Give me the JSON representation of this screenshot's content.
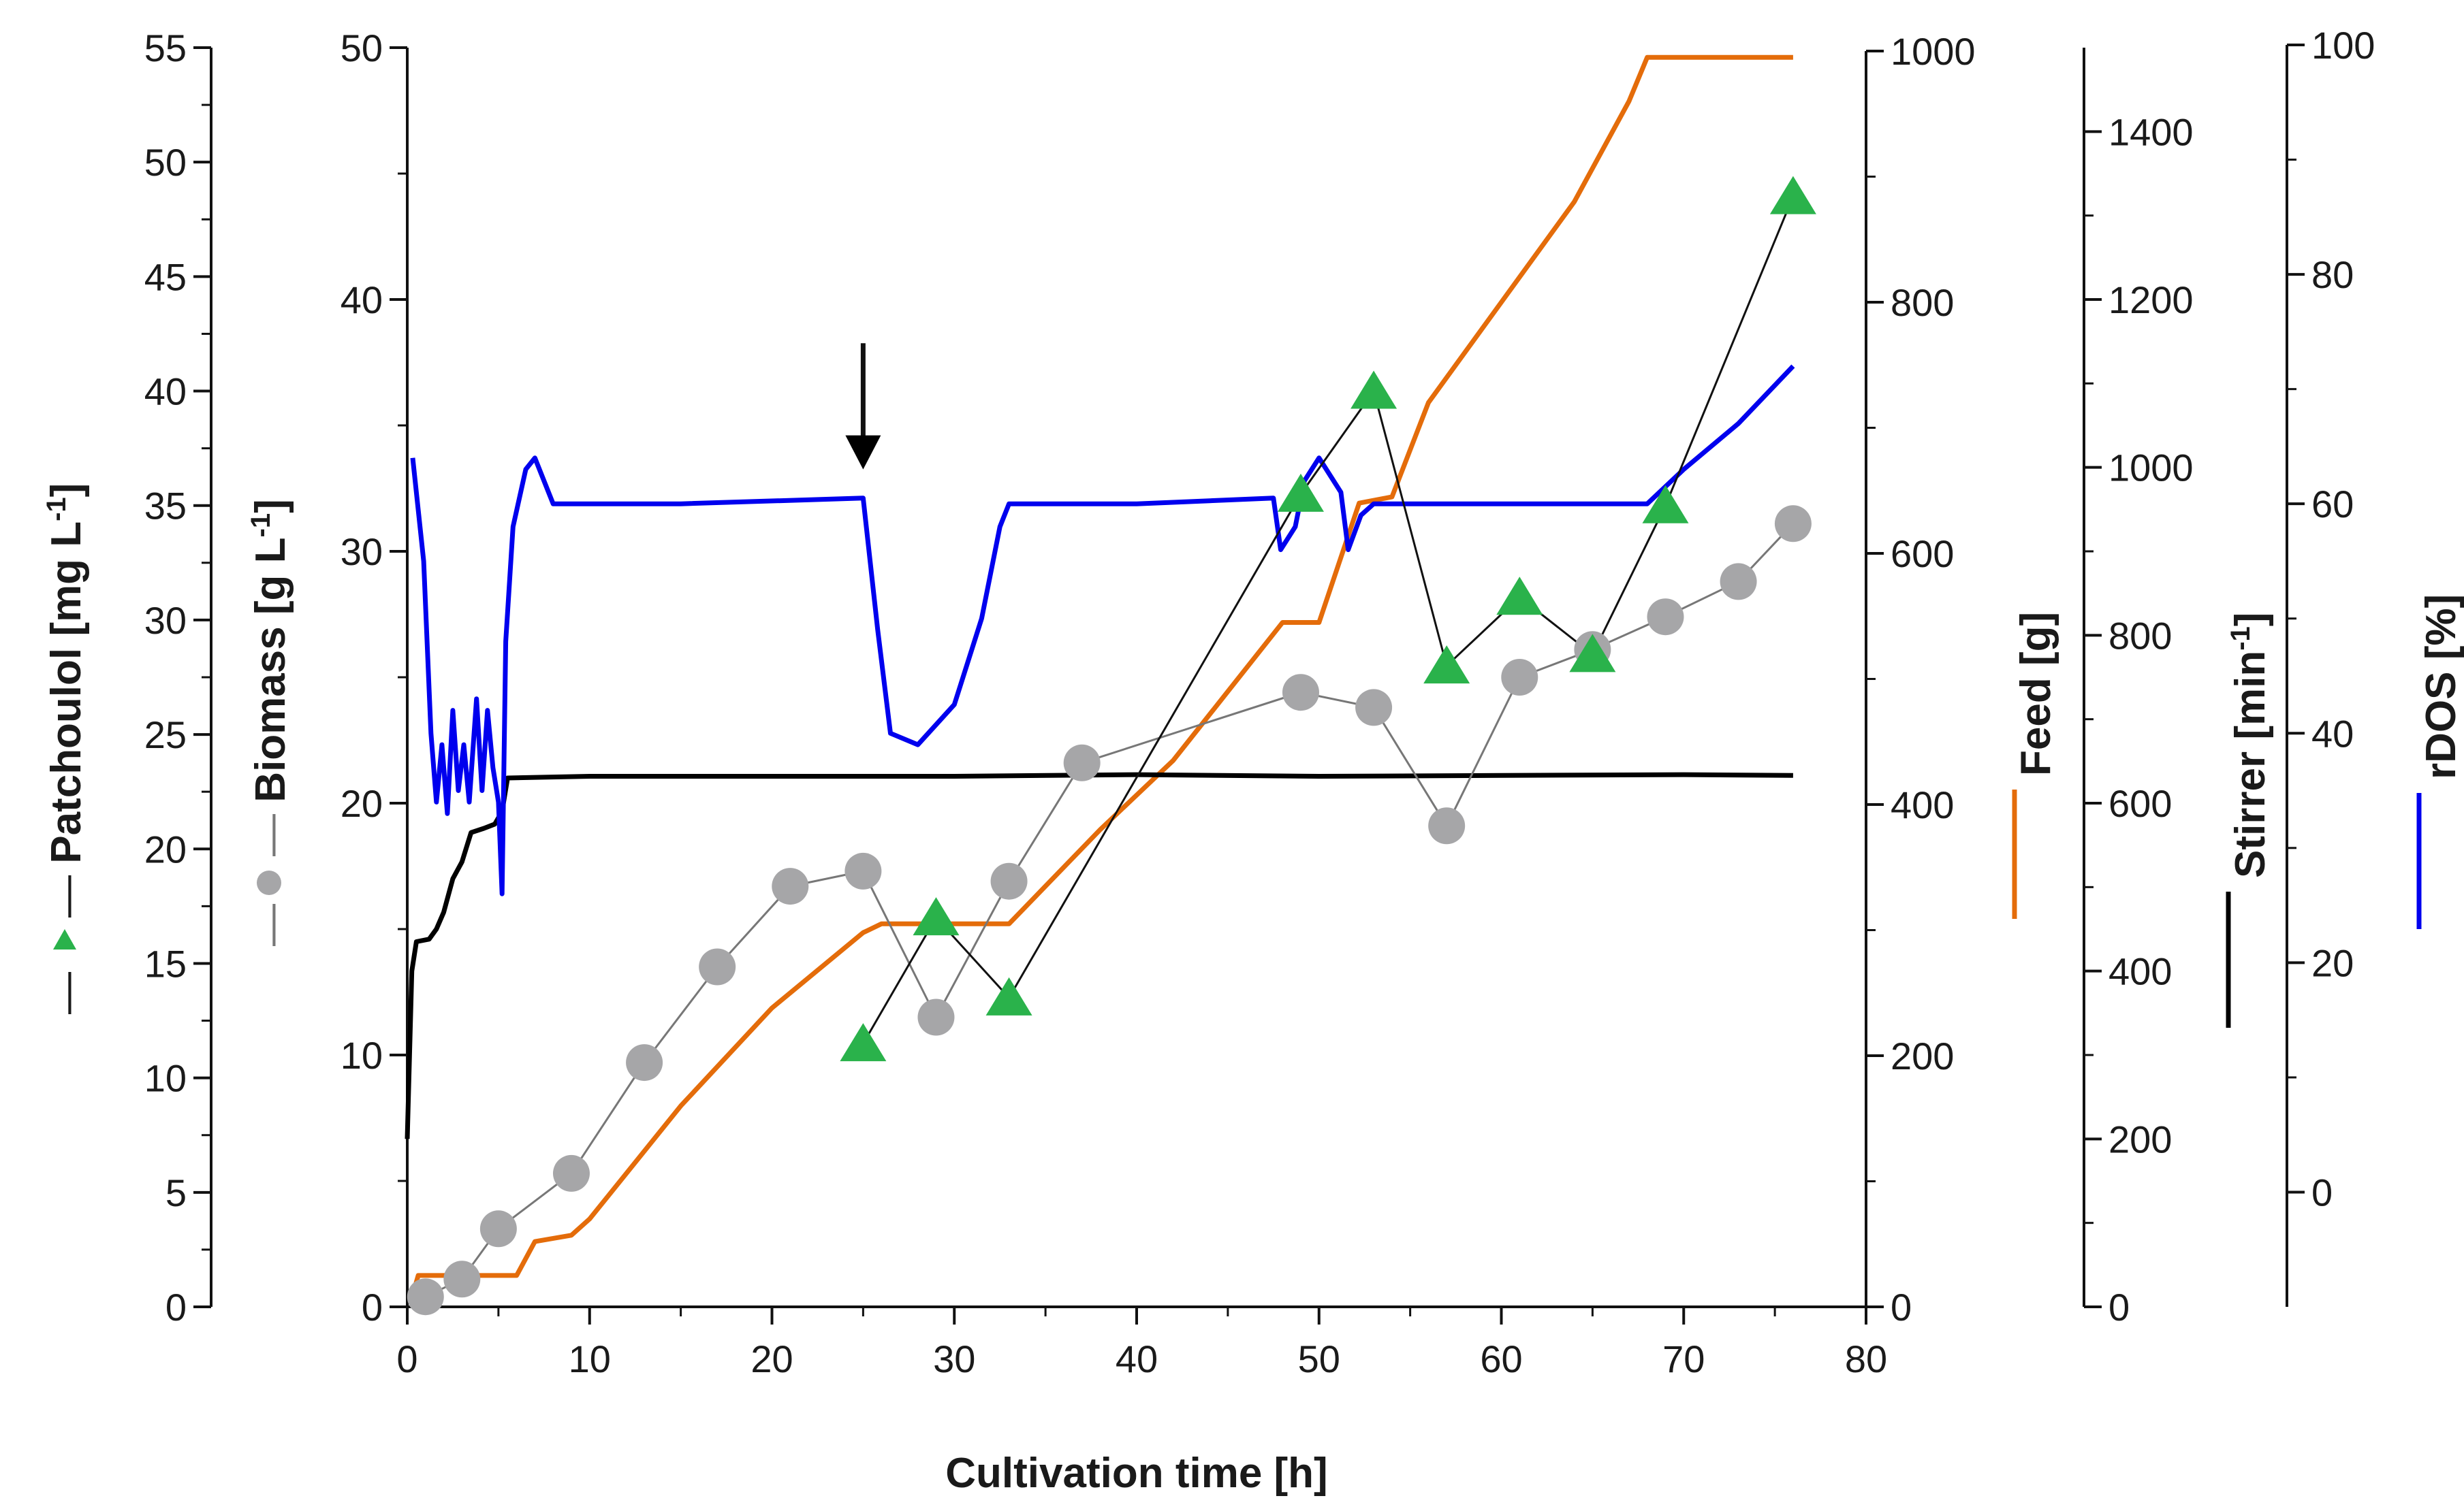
{
  "chart_data": {
    "type": "line",
    "title": "",
    "xlabel": "Cultivation time [h]",
    "xlim": [
      0,
      80
    ],
    "x_ticks": [
      0,
      10,
      20,
      30,
      40,
      50,
      60,
      70,
      80
    ],
    "grid": false,
    "axes": {
      "patchoulol": {
        "label_main": "Patchoulol [mg L",
        "label_sup": "-1",
        "label_end": "]",
        "legend_prefix": "—",
        "legend_suffix": "—",
        "range": [
          0,
          55
        ],
        "ticks": [
          0,
          5,
          10,
          15,
          20,
          25,
          30,
          35,
          40,
          45,
          50,
          55
        ]
      },
      "biomass": {
        "label_main": "Biomass [g L",
        "label_sup": "-1",
        "label_end": "]",
        "legend_prefix": "—",
        "legend_suffix": "—",
        "range": [
          0,
          50
        ],
        "ticks": [
          0,
          10,
          20,
          30,
          40,
          50
        ]
      },
      "feed": {
        "label": "Feed [g]",
        "range": [
          0,
          1000
        ],
        "ticks": [
          0,
          200,
          400,
          600,
          800,
          1000
        ]
      },
      "stirrer": {
        "label_main": "Stirrer [min",
        "label_sup": "-1",
        "label_end": "]",
        "range": [
          0,
          1500
        ],
        "ticks": [
          0,
          200,
          400,
          600,
          800,
          1000,
          1200,
          1400
        ]
      },
      "rdos": {
        "label": "rDOS [%]",
        "range": [
          -10,
          100
        ],
        "ticks": [
          0,
          20,
          40,
          60,
          80,
          100
        ]
      }
    },
    "annotations": [
      {
        "type": "arrow",
        "x": 25,
        "y_rdos": 74,
        "y_rdos_end": 63,
        "text": ""
      }
    ],
    "series": [
      {
        "name": "Patchoulol",
        "axis": "patchoulol",
        "style": "markers+line",
        "marker": "triangle",
        "color": "#2ab24b",
        "points": [
          [
            25,
            11.5
          ],
          [
            29,
            17
          ],
          [
            33,
            13.5
          ],
          [
            49,
            35.5
          ],
          [
            53,
            40
          ],
          [
            57,
            28
          ],
          [
            61,
            31
          ],
          [
            65,
            28.5
          ],
          [
            69,
            35
          ],
          [
            76,
            48.5
          ]
        ]
      },
      {
        "name": "Biomass",
        "axis": "biomass",
        "style": "markers+line",
        "marker": "circle",
        "color": "#a6a6a8",
        "points": [
          [
            1,
            0.4
          ],
          [
            3,
            1.1
          ],
          [
            5,
            3.1
          ],
          [
            9,
            5.3
          ],
          [
            13,
            9.7
          ],
          [
            17,
            13.5
          ],
          [
            21,
            16.7
          ],
          [
            25,
            17.3
          ],
          [
            29,
            11.5
          ],
          [
            33,
            16.9
          ],
          [
            37,
            21.6
          ],
          [
            49,
            24.4
          ],
          [
            53,
            23.8
          ],
          [
            57,
            19.1
          ],
          [
            61,
            25
          ],
          [
            65,
            26.1
          ],
          [
            69,
            27.4
          ],
          [
            73,
            28.8
          ],
          [
            76,
            31.1
          ]
        ]
      },
      {
        "name": "Feed",
        "axis": "feed",
        "style": "line",
        "color": "#e46c0a",
        "points": [
          [
            0.2,
            5
          ],
          [
            0.6,
            25
          ],
          [
            6,
            25
          ],
          [
            7,
            52
          ],
          [
            9,
            57
          ],
          [
            10,
            70
          ],
          [
            15,
            160
          ],
          [
            20,
            238
          ],
          [
            25,
            298
          ],
          [
            26,
            305
          ],
          [
            33,
            305
          ],
          [
            38,
            380
          ],
          [
            42,
            435
          ],
          [
            48,
            545
          ],
          [
            50,
            545
          ],
          [
            52.2,
            640
          ],
          [
            54,
            645
          ],
          [
            56,
            720
          ],
          [
            60,
            800
          ],
          [
            64,
            880
          ],
          [
            67,
            960
          ],
          [
            68,
            995
          ],
          [
            76,
            995
          ]
        ]
      },
      {
        "name": "Stirrer",
        "axis": "stirrer",
        "style": "line",
        "color": "#000000",
        "points": [
          [
            0,
            200
          ],
          [
            0.25,
            400
          ],
          [
            0.5,
            435
          ],
          [
            1.2,
            438
          ],
          [
            1.6,
            450
          ],
          [
            2,
            470
          ],
          [
            2.5,
            510
          ],
          [
            3,
            530
          ],
          [
            3.5,
            565
          ],
          [
            4.2,
            570
          ],
          [
            4.8,
            575
          ],
          [
            5.2,
            590
          ],
          [
            5.5,
            630
          ],
          [
            10,
            632
          ],
          [
            20,
            632
          ],
          [
            30,
            632
          ],
          [
            40,
            634
          ],
          [
            50,
            632
          ],
          [
            60,
            633
          ],
          [
            70,
            634
          ],
          [
            76,
            633
          ]
        ]
      },
      {
        "name": "rDOS",
        "axis": "rdos",
        "style": "line",
        "color": "#0000ee",
        "points": [
          [
            0.3,
            64
          ],
          [
            0.9,
            55
          ],
          [
            1.3,
            40
          ],
          [
            1.6,
            34
          ],
          [
            1.9,
            39
          ],
          [
            2.2,
            33
          ],
          [
            2.5,
            42
          ],
          [
            2.8,
            35
          ],
          [
            3.1,
            39
          ],
          [
            3.4,
            34
          ],
          [
            3.8,
            43
          ],
          [
            4.1,
            35
          ],
          [
            4.4,
            42
          ],
          [
            4.7,
            37
          ],
          [
            5,
            34
          ],
          [
            5.2,
            26
          ],
          [
            5.4,
            48
          ],
          [
            5.8,
            58
          ],
          [
            6.5,
            63
          ],
          [
            7,
            64
          ],
          [
            8,
            60
          ],
          [
            15,
            60
          ],
          [
            25,
            60.5
          ],
          [
            25.8,
            49
          ],
          [
            26.5,
            40
          ],
          [
            28,
            39
          ],
          [
            30,
            42.5
          ],
          [
            31.5,
            50
          ],
          [
            32.5,
            58
          ],
          [
            33,
            60
          ],
          [
            40,
            60
          ],
          [
            47.5,
            60.5
          ],
          [
            47.9,
            56
          ],
          [
            48.7,
            58
          ],
          [
            49.2,
            62
          ],
          [
            50,
            64
          ],
          [
            51.2,
            61
          ],
          [
            51.6,
            56
          ],
          [
            52.3,
            59
          ],
          [
            53,
            60
          ],
          [
            60,
            60
          ],
          [
            68,
            60
          ],
          [
            70,
            63
          ],
          [
            73,
            67
          ],
          [
            76,
            72
          ]
        ]
      }
    ]
  }
}
